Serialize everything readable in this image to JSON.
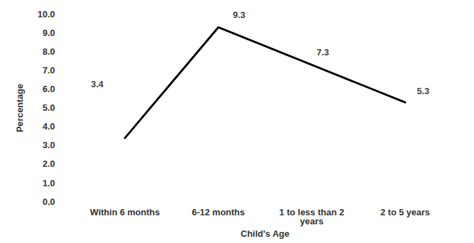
{
  "chart_data": {
    "type": "line",
    "x_label": "Child's Age",
    "y_label": "Percentage",
    "categories": [
      "Within 6 months",
      "6-12 months",
      "1 to less than 2 years",
      "2 to 5 years"
    ],
    "values": [
      3.4,
      9.3,
      7.3,
      5.3
    ],
    "color": "#000000",
    "ylim": [
      0,
      10
    ],
    "yticks": [
      {
        "value": 0,
        "label": "0.0"
      },
      {
        "value": 1,
        "label": "1.0"
      },
      {
        "value": 2,
        "label": "2.0"
      },
      {
        "value": 3,
        "label": "3.0"
      },
      {
        "value": 4,
        "label": "4.0"
      },
      {
        "value": 5,
        "label": "5.0"
      },
      {
        "value": 6,
        "label": "6.0"
      },
      {
        "value": 7,
        "label": "7.0"
      },
      {
        "value": 8,
        "label": "8.0"
      },
      {
        "value": 9,
        "label": "9.0"
      },
      {
        "value": 10,
        "label": "10.0"
      }
    ],
    "grid": false,
    "data_labels": true
  }
}
